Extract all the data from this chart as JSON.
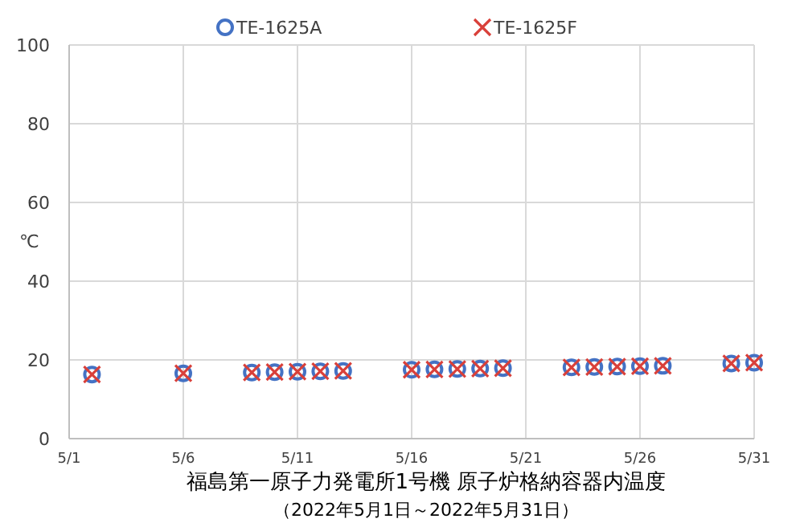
{
  "chart_data": {
    "type": "scatter",
    "title": "福島第一原子力発電所1号機  原子炉格納容器内温度",
    "subtitle": "（2022年5月1日～2022年5月31日）",
    "ylabel": "℃",
    "x": [
      "2022-05-02",
      "2022-05-06",
      "2022-05-09",
      "2022-05-10",
      "2022-05-11",
      "2022-05-12",
      "2022-05-13",
      "2022-05-16",
      "2022-05-17",
      "2022-05-18",
      "2022-05-19",
      "2022-05-20",
      "2022-05-23",
      "2022-05-24",
      "2022-05-25",
      "2022-05-26",
      "2022-05-27",
      "2022-05-30",
      "2022-05-31"
    ],
    "series": [
      {
        "name": "TE-1625A",
        "color": "#4472c4",
        "marker": "circle",
        "values": [
          16.3,
          16.6,
          16.8,
          16.9,
          17.0,
          17.1,
          17.2,
          17.5,
          17.6,
          17.7,
          17.8,
          17.9,
          18.1,
          18.2,
          18.3,
          18.4,
          18.5,
          19.1,
          19.3
        ]
      },
      {
        "name": "TE-1625F",
        "color": "#d9403a",
        "marker": "cross",
        "values": [
          16.3,
          16.6,
          16.8,
          16.9,
          17.0,
          17.1,
          17.2,
          17.5,
          17.6,
          17.7,
          17.8,
          17.9,
          18.1,
          18.2,
          18.3,
          18.4,
          18.5,
          19.1,
          19.3
        ]
      }
    ],
    "xlim": [
      "2022-05-01",
      "2022-05-31"
    ],
    "xticks": [
      {
        "value": "2022-05-01",
        "label": "5/1"
      },
      {
        "value": "2022-05-06",
        "label": "5/6"
      },
      {
        "value": "2022-05-11",
        "label": "5/11"
      },
      {
        "value": "2022-05-16",
        "label": "5/16"
      },
      {
        "value": "2022-05-21",
        "label": "5/21"
      },
      {
        "value": "2022-05-26",
        "label": "5/26"
      },
      {
        "value": "2022-05-31",
        "label": "5/31"
      }
    ],
    "ylim": [
      0,
      100
    ],
    "yticks": [
      0,
      20,
      40,
      60,
      80,
      100
    ],
    "grid": true,
    "legend": "top"
  }
}
